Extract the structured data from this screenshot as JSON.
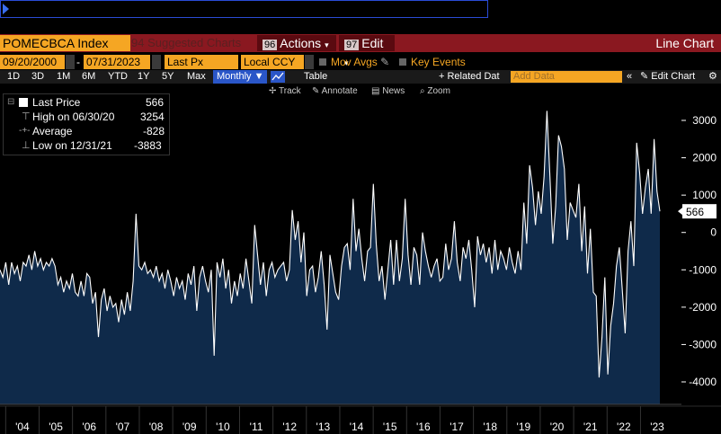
{
  "toolbar": {
    "ticker": "POMECBCA Index",
    "suggested_num": "94",
    "suggested": "Suggested Charts",
    "actions_num": "96",
    "actions": "Actions",
    "edit_num": "97",
    "edit": "Edit",
    "chart_type": "Line Chart"
  },
  "params": {
    "start_date": "09/20/2000",
    "end_date": "07/31/2023",
    "field": "Last Px",
    "currency": "Local CCY",
    "mov_avgs": "Mov Avgs",
    "key_events": "Key Events"
  },
  "periods": [
    "1D",
    "3D",
    "1M",
    "6M",
    "YTD",
    "1Y",
    "5Y",
    "Max"
  ],
  "period_selected": "Monthly ▼",
  "table_label": "Table",
  "related_data": "+ Related Dat",
  "add_data_placeholder": "Add Data",
  "edit_chart": "Edit Chart",
  "tools": [
    "Track",
    "Annotate",
    "News",
    "Zoom"
  ],
  "legend": {
    "last_label": "Last Price",
    "last_value": "566",
    "high_label": "High on 06/30/20",
    "high_value": "3254",
    "avg_label": "Average",
    "avg_value": "-828",
    "low_label": "Low on 12/31/21",
    "low_value": "-3883"
  },
  "last_tag": "566",
  "colors": {
    "fill": "#0f2a4a",
    "line": "#ffffff",
    "accent": "#f5a623",
    "titlebar": "#8a1820"
  },
  "chart_data": {
    "type": "area",
    "title": "",
    "xlabel": "",
    "ylabel": "",
    "ylim": [
      -4700,
      3700
    ],
    "yticks": [
      3000,
      2000,
      1000,
      0,
      -1000,
      -2000,
      -3000,
      -4000
    ],
    "xtick_labels": [
      "'04",
      "'05",
      "'06",
      "'07",
      "'08",
      "'09",
      "'10",
      "'11",
      "'12",
      "'13",
      "'14",
      "'15",
      "'16",
      "'17",
      "'18",
      "'19",
      "'20",
      "'21",
      "'22",
      "'23"
    ],
    "x_start": 2003.83,
    "x_end": 2023.58,
    "series": [
      {
        "values": [
          -1000,
          -1200,
          -800,
          -1400,
          -800,
          -1100,
          -900,
          -1300,
          -800,
          -900,
          -600,
          -1000,
          -500,
          -900,
          -700,
          -1000,
          -800,
          -900,
          -700,
          -900,
          -1400,
          -1200,
          -1600,
          -1300,
          -1500,
          -1100,
          -1600,
          -1700,
          -1300,
          -1700,
          -1100,
          -1200,
          -1900,
          -1600,
          -2800,
          -1800,
          -1500,
          -2100,
          -1700,
          -2000,
          -1900,
          -2400,
          -1800,
          -2200,
          -1600,
          -2100,
          -1300,
          500,
          -900,
          -1000,
          -800,
          -1100,
          -1000,
          -1200,
          -900,
          -1300,
          -1100,
          -1500,
          -1000,
          -1300,
          -1700,
          -1200,
          -1500,
          -1300,
          -1800,
          -1100,
          -1400,
          -900,
          -2100,
          -1200,
          -900,
          -1300,
          -1600,
          -1000,
          -3300,
          -800,
          -1200,
          -700,
          -1500,
          -1000,
          -1900,
          -1300,
          -1700,
          -1100,
          -1500,
          -700,
          -1300,
          -1900,
          200,
          -600,
          -1400,
          -800,
          -1700,
          -1000,
          -800,
          -1200,
          -1000,
          -900,
          -800,
          -1300,
          -1000,
          600,
          -200,
          300,
          -800,
          0,
          -1700,
          -1000,
          -900,
          -1600,
          -1200,
          -500,
          -1400,
          -2600,
          -600,
          -1100,
          -1600,
          -1800,
          -900,
          -400,
          -300,
          -1000,
          900,
          -500,
          100,
          -700,
          -1300,
          -500,
          -400,
          1300,
          -300,
          -1300,
          -900,
          -1800,
          -1000,
          -200,
          -1400,
          -200,
          -1300,
          -700,
          900,
          -600,
          -1400,
          -400,
          -600,
          -1400,
          0,
          -500,
          -900,
          -1200,
          -900,
          -700,
          -1300,
          -1200,
          -300,
          -1000,
          -700,
          300,
          -800,
          -1300,
          -400,
          -700,
          -200,
          -1000,
          -2000,
          -100,
          -600,
          -300,
          -800,
          -400,
          -1100,
          -200,
          -1000,
          -500,
          -700,
          -1000,
          -400,
          -800,
          -1100,
          -500,
          -1000,
          800,
          -300,
          1800,
          1200,
          200,
          1100,
          500,
          1500,
          3254,
          1500,
          -300,
          700,
          2600,
          2300,
          1700,
          -200,
          800,
          600,
          400,
          1300,
          -500,
          700,
          -1100,
          100,
          -1600,
          -1700,
          -3883,
          -2800,
          -1200,
          -3800,
          -2500,
          -1900,
          -900,
          -400,
          -1500,
          -2700,
          -500,
          300,
          -900,
          2400,
          1600,
          500,
          1200,
          1700,
          500,
          2500,
          1100,
          566
        ]
      }
    ]
  }
}
